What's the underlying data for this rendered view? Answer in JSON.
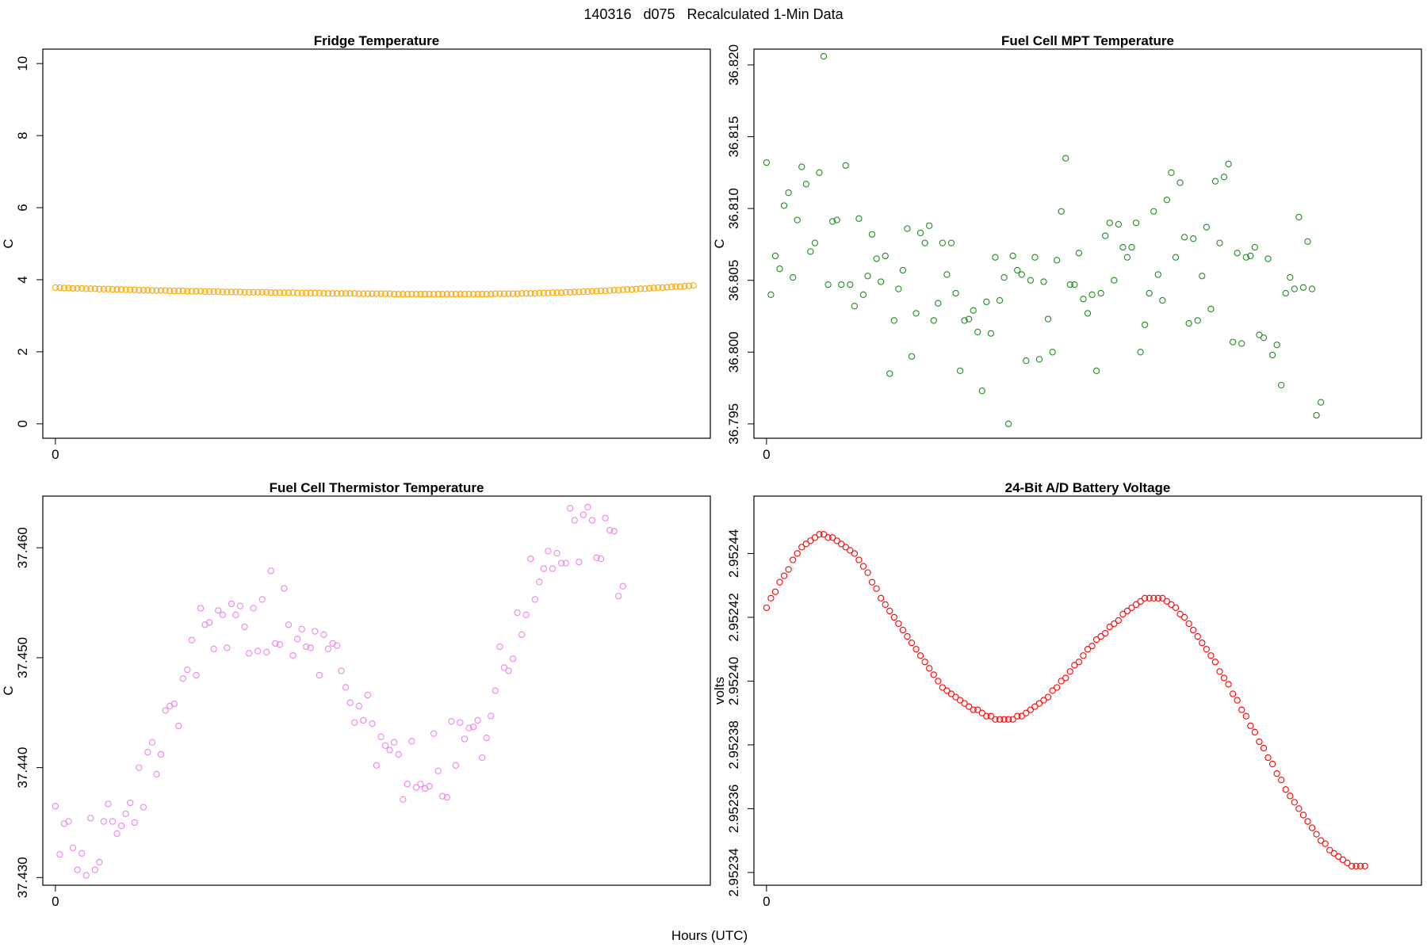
{
  "figure": {
    "title": "140316   d075   Recalculated 1-Min Data",
    "xlabel": "Hours (UTC)"
  },
  "chart_data": [
    {
      "type": "scatter",
      "title": "Fridge Temperature",
      "xlabel": "",
      "ylabel": "C",
      "color": "#ffa500",
      "ylim": [
        -0.4,
        10.4
      ],
      "xlim": [
        -2.86,
        148.86
      ],
      "xticks": [
        0
      ],
      "yticks": [
        0,
        2,
        4,
        6,
        8,
        10
      ],
      "ytick_labels": [
        "0",
        "2",
        "4",
        "6",
        "8",
        "10"
      ],
      "y": [
        3.78,
        3.78,
        3.77,
        3.77,
        3.76,
        3.76,
        3.76,
        3.75,
        3.75,
        3.75,
        3.74,
        3.74,
        3.74,
        3.73,
        3.73,
        3.73,
        3.72,
        3.72,
        3.72,
        3.71,
        3.71,
        3.71,
        3.7,
        3.7,
        3.7,
        3.7,
        3.69,
        3.69,
        3.69,
        3.69,
        3.68,
        3.68,
        3.68,
        3.68,
        3.67,
        3.67,
        3.67,
        3.67,
        3.66,
        3.66,
        3.66,
        3.66,
        3.66,
        3.65,
        3.65,
        3.65,
        3.65,
        3.65,
        3.65,
        3.64,
        3.64,
        3.64,
        3.64,
        3.64,
        3.64,
        3.63,
        3.63,
        3.63,
        3.63,
        3.63,
        3.63,
        3.62,
        3.62,
        3.62,
        3.62,
        3.62,
        3.62,
        3.62,
        3.62,
        3.61,
        3.61,
        3.61,
        3.61,
        3.61,
        3.61,
        3.61,
        3.61,
        3.6,
        3.6,
        3.6,
        3.6,
        3.6,
        3.6,
        3.6,
        3.6,
        3.6,
        3.6,
        3.6,
        3.6,
        3.6,
        3.6,
        3.6,
        3.6,
        3.6,
        3.6,
        3.6,
        3.6,
        3.6,
        3.6,
        3.6,
        3.61,
        3.61,
        3.61,
        3.61,
        3.61,
        3.61,
        3.62,
        3.62,
        3.62,
        3.62,
        3.63,
        3.63,
        3.63,
        3.64,
        3.64,
        3.64,
        3.65,
        3.65,
        3.66,
        3.66,
        3.67,
        3.67,
        3.68,
        3.68,
        3.69,
        3.69,
        3.7,
        3.71,
        3.71,
        3.72,
        3.73,
        3.73,
        3.74,
        3.75,
        3.75,
        3.76,
        3.77,
        3.78,
        3.78,
        3.79,
        3.8,
        3.81,
        3.81,
        3.82,
        3.83,
        3.84
      ]
    },
    {
      "type": "scatter",
      "title": "Fuel Cell MPT Temperature",
      "xlabel": "",
      "ylabel": "C",
      "color": "#228b22",
      "ylim": [
        36.794,
        36.8211
      ],
      "xlim": [
        -2.86,
        148.86
      ],
      "xticks": [
        0
      ],
      "yticks": [
        36.795,
        36.8,
        36.805,
        36.81,
        36.815,
        36.82
      ],
      "ytick_labels": [
        "36.795",
        "36.800",
        "36.805",
        "36.810",
        "36.815",
        "36.820"
      ],
      "y": [
        36.8132,
        36.804,
        36.8067,
        36.8058,
        36.8102,
        36.8111,
        36.8052,
        36.8092,
        36.8129,
        36.8117,
        36.807,
        36.8076,
        36.8125,
        36.8206,
        36.8047,
        36.8091,
        36.8092,
        36.8047,
        36.813,
        36.8047,
        36.8032,
        36.8093,
        36.804,
        36.8053,
        36.8082,
        36.8065,
        36.8049,
        36.8067,
        36.7985,
        36.8022,
        36.8044,
        36.8057,
        36.8086,
        36.7997,
        36.8027,
        36.8083,
        36.8076,
        36.8088,
        36.8022,
        36.8034,
        36.8076,
        36.8054,
        36.8076,
        36.8041,
        36.7987,
        36.8022,
        36.8023,
        36.8029,
        36.8014,
        36.7973,
        36.8035,
        36.8013,
        36.8066,
        36.8036,
        36.8052,
        36.795,
        36.8067,
        36.8057,
        36.8054,
        36.7994,
        36.805,
        36.8066,
        36.7995,
        36.8049,
        36.8023,
        36.8,
        36.8064,
        36.8098,
        36.8135,
        36.8047,
        36.8047,
        36.8069,
        36.8037,
        36.8027,
        36.804,
        36.7987,
        36.8041,
        36.8081,
        36.809,
        36.805,
        36.8089,
        36.8073,
        36.8066,
        36.8073,
        36.809,
        36.8,
        36.8019,
        36.8041,
        36.8098,
        36.8054,
        36.8036,
        36.8106,
        36.8125,
        36.8066,
        36.8118,
        36.808,
        36.802,
        36.8079,
        36.8022,
        36.8053,
        36.8087,
        36.803,
        36.8119,
        36.8076,
        36.8122,
        36.8131,
        36.8007,
        36.8069,
        36.8006,
        36.8066,
        36.8067,
        36.8073,
        36.8012,
        36.801,
        36.8065,
        36.7998,
        36.8005,
        36.7977,
        36.8041,
        36.8052,
        36.8044,
        36.8094,
        36.8045,
        36.8077,
        36.8044,
        36.7956,
        36.7965
      ]
    },
    {
      "type": "scatter",
      "title": "Fuel Cell Thermistor Temperature",
      "xlabel": "",
      "ylabel": "C",
      "color": "#ee82ee",
      "ylim": [
        37.4293,
        37.4647
      ],
      "xlim": [
        -2.86,
        148.86
      ],
      "xticks": [
        0
      ],
      "yticks": [
        37.43,
        37.44,
        37.45,
        37.46
      ],
      "ytick_labels": [
        "37.430",
        "37.440",
        "37.450",
        "37.460"
      ],
      "y": [
        37.4365,
        37.4321,
        37.4349,
        37.4351,
        37.4327,
        37.4307,
        37.4322,
        37.4302,
        37.4354,
        37.4307,
        37.4314,
        37.4351,
        37.4367,
        37.4351,
        37.434,
        37.4347,
        37.4358,
        37.4368,
        37.435,
        37.44,
        37.4364,
        37.4414,
        37.4423,
        37.4394,
        37.4412,
        37.4452,
        37.4456,
        37.4458,
        37.4438,
        37.4481,
        37.4489,
        37.4516,
        37.4484,
        37.4545,
        37.453,
        37.4532,
        37.4508,
        37.4543,
        37.4539,
        37.4509,
        37.4549,
        37.4539,
        37.4547,
        37.4528,
        37.4504,
        37.4545,
        37.4506,
        37.4553,
        37.4505,
        37.4579,
        37.4513,
        37.4512,
        37.4563,
        37.453,
        37.4502,
        37.4517,
        37.4526,
        37.451,
        37.4509,
        37.4524,
        37.4484,
        37.4521,
        37.4508,
        37.4513,
        37.4511,
        37.4488,
        37.4473,
        37.4459,
        37.4441,
        37.4456,
        37.4443,
        37.4466,
        37.444,
        37.4402,
        37.4428,
        37.442,
        37.4416,
        37.4423,
        37.4412,
        37.4371,
        37.4385,
        37.4424,
        37.4382,
        37.4385,
        37.4381,
        37.4383,
        37.4431,
        37.4397,
        37.4374,
        37.4373,
        37.4442,
        37.4402,
        37.4441,
        37.4426,
        37.4436,
        37.4437,
        37.4443,
        37.4409,
        37.4427,
        37.4447,
        37.447,
        37.451,
        37.4491,
        37.4488,
        37.4499,
        37.4541,
        37.4521,
        37.4539,
        37.459,
        37.4553,
        37.4569,
        37.4581,
        37.4597,
        37.4581,
        37.4595,
        37.4586,
        37.4586,
        37.4636,
        37.4625,
        37.4587,
        37.463,
        37.4637,
        37.4625,
        37.4591,
        37.459,
        37.4627,
        37.4616,
        37.4615,
        37.4556,
        37.4565
      ]
    },
    {
      "type": "scatter",
      "title": "24-Bit A/D Battery Voltage",
      "xlabel": "",
      "ylabel": "volts",
      "color": "#ff0000",
      "ylim": [
        2.952336,
        2.952458
      ],
      "xlim": [
        -2.86,
        148.86
      ],
      "xticks": [
        0
      ],
      "yticks": [
        2.95234,
        2.95236,
        2.95238,
        2.9524,
        2.95242,
        2.95244
      ],
      "ytick_labels": [
        "2.95234",
        "2.95236",
        "2.95238",
        "2.95240",
        "2.95242",
        "2.95244"
      ],
      "y": [
        2.952423,
        2.952426,
        2.952428,
        2.952431,
        2.952433,
        2.952435,
        2.952438,
        2.95244,
        2.952442,
        2.952443,
        2.952444,
        2.952445,
        2.952446,
        2.952446,
        2.952445,
        2.952445,
        2.952444,
        2.952443,
        2.952442,
        2.952441,
        2.95244,
        2.952438,
        2.952436,
        2.952434,
        2.952431,
        2.952429,
        2.952426,
        2.952424,
        2.952422,
        2.95242,
        2.952418,
        2.952416,
        2.952414,
        2.952412,
        2.95241,
        2.952408,
        2.952406,
        2.952404,
        2.952402,
        2.9524,
        2.952398,
        2.952397,
        2.952396,
        2.952395,
        2.952394,
        2.952393,
        2.952392,
        2.952391,
        2.952391,
        2.95239,
        2.952389,
        2.952389,
        2.952388,
        2.952388,
        2.952388,
        2.952388,
        2.952388,
        2.952389,
        2.952389,
        2.95239,
        2.952391,
        2.952392,
        2.952393,
        2.952394,
        2.952395,
        2.952397,
        2.952398,
        2.9524,
        2.952401,
        2.952403,
        2.952405,
        2.952406,
        2.952408,
        2.95241,
        2.952411,
        2.952413,
        2.952414,
        2.952415,
        2.952417,
        2.952418,
        2.952419,
        2.952421,
        2.952422,
        2.952423,
        2.952424,
        2.952425,
        2.952426,
        2.952426,
        2.952426,
        2.952426,
        2.952426,
        2.952425,
        2.952424,
        2.952423,
        2.952421,
        2.95242,
        2.952418,
        2.952416,
        2.952414,
        2.952412,
        2.95241,
        2.952408,
        2.952406,
        2.952403,
        2.952401,
        2.952399,
        2.952396,
        2.952394,
        2.952391,
        2.952389,
        2.952386,
        2.952384,
        2.952381,
        2.952379,
        2.952376,
        2.952374,
        2.952371,
        2.952369,
        2.952366,
        2.952364,
        2.952362,
        2.95236,
        2.952358,
        2.952356,
        2.952354,
        2.952352,
        2.95235,
        2.952349,
        2.952347,
        2.952346,
        2.952345,
        2.952344,
        2.952343,
        2.952342,
        2.952342,
        2.952342,
        2.952342
      ]
    }
  ]
}
